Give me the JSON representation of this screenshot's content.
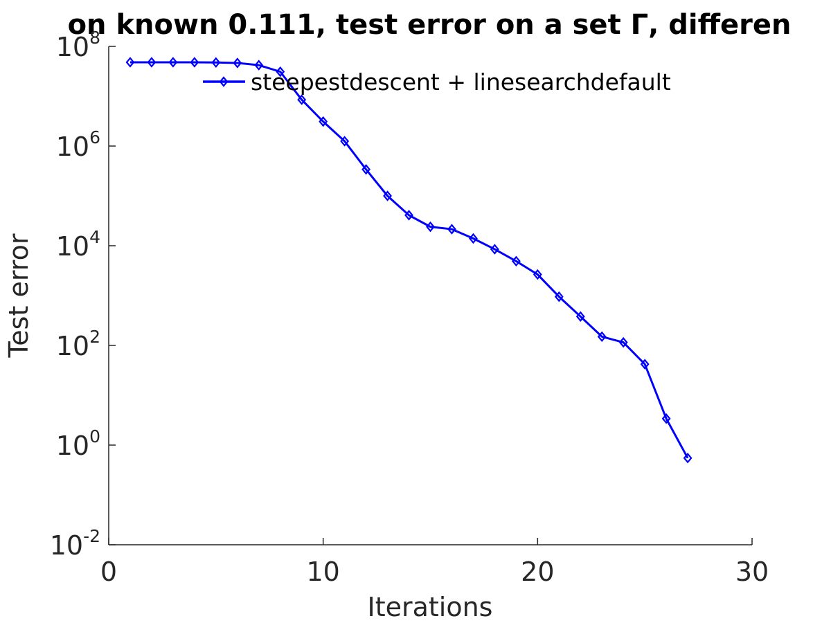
{
  "chart_data": {
    "type": "line",
    "title": "on known 0.111, test error on a set  Γ, differen",
    "xlabel": "Iterations",
    "ylabel": "Test error",
    "xlim": [
      0,
      30
    ],
    "ylim": [
      0.01,
      100000000
    ],
    "yscale": "log",
    "grid": false,
    "legend_position": "top-right",
    "x_ticks": [
      0,
      10,
      20,
      30
    ],
    "y_ticks": [
      {
        "base": "10",
        "exp": "-2",
        "value": 0.01
      },
      {
        "base": "10",
        "exp": "0",
        "value": 1
      },
      {
        "base": "10",
        "exp": "2",
        "value": 100
      },
      {
        "base": "10",
        "exp": "4",
        "value": 10000
      },
      {
        "base": "10",
        "exp": "6",
        "value": 1000000
      },
      {
        "base": "10",
        "exp": "8",
        "value": 100000000
      }
    ],
    "series": [
      {
        "name": "steepestdescent + linesearchdefault",
        "color": "#0000ff",
        "marker": "diamond",
        "x": [
          1,
          2,
          3,
          4,
          5,
          6,
          7,
          8,
          9,
          10,
          11,
          12,
          13,
          14,
          15,
          16,
          17,
          18,
          19,
          20,
          21,
          22,
          23,
          24,
          25,
          26,
          27
        ],
        "y": [
          48000000,
          48000000,
          48000000,
          48000000,
          47500000,
          46500000,
          42000000,
          31000000,
          8500000,
          3100000,
          1250000,
          340000,
          100000,
          41000,
          24000,
          21500,
          14000,
          8500,
          4900,
          2650,
          950,
          380,
          150,
          115,
          42,
          3.4,
          0.55
        ]
      }
    ]
  }
}
